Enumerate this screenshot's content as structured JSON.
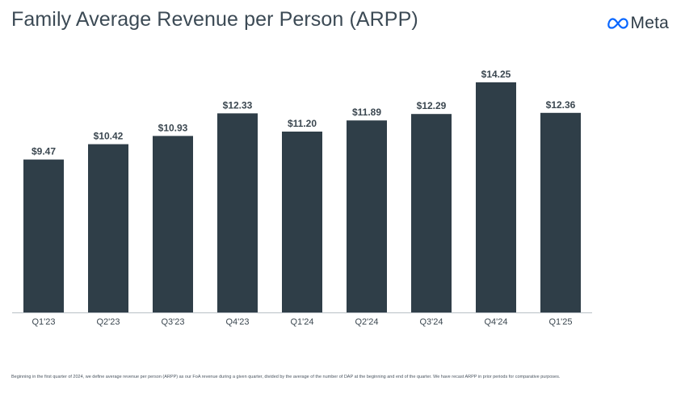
{
  "header": {
    "title": "Family Average Revenue per Person (ARPP)",
    "logo_text": "Meta",
    "logo_icon": "meta-infinity-icon"
  },
  "colors": {
    "bar": "#2f3e48",
    "axis": "#b9c0c5",
    "text": "#3b4750",
    "brand": "#0866ff"
  },
  "chart_data": {
    "type": "bar",
    "title": "Family Average Revenue per Person (ARPP)",
    "categories": [
      "Q1'23",
      "Q2'23",
      "Q3'23",
      "Q4'23",
      "Q1'24",
      "Q2'24",
      "Q3'24",
      "Q4'24",
      "Q1'25"
    ],
    "values": [
      9.47,
      10.42,
      10.93,
      12.33,
      11.2,
      11.89,
      12.29,
      14.25,
      12.36
    ],
    "labels": [
      "$9.47",
      "$10.42",
      "$10.93",
      "$12.33",
      "$11.20",
      "$11.89",
      "$12.29",
      "$14.25",
      "$12.36"
    ],
    "xlabel": "",
    "ylabel": "",
    "ylim": [
      0,
      16
    ],
    "grid": false,
    "legend": "none"
  },
  "footnote": "Beginning in the first quarter of 2024, we define average revenue per person (ARPP) as our FoA revenue during a given quarter, divided by the average of the number of DAP at the beginning and end of the quarter. We have recast ARPP in prior periods for comparative purposes."
}
